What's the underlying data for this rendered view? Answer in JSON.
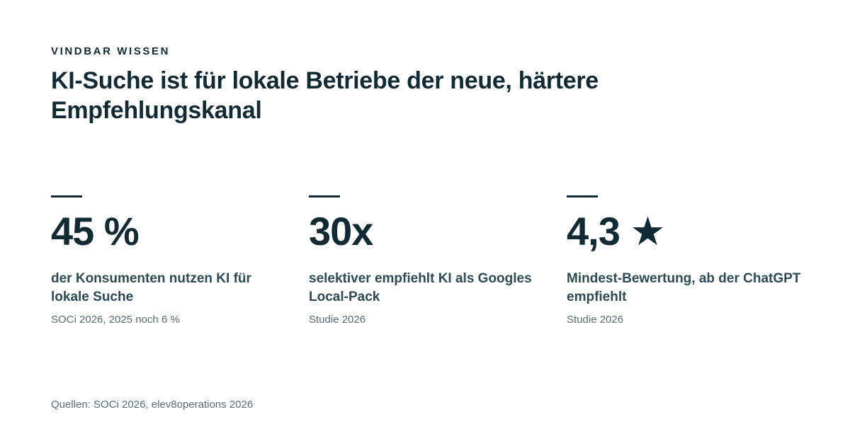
{
  "eyebrow": "VINDBAR WISSEN",
  "headline": "KI-Suche ist für lokale Betriebe der neue, härtere Empfehlungskanal",
  "stats": [
    {
      "value": "45 %",
      "description": "der Konsumenten nutzen KI für lokale Suche",
      "source": "SOCi 2026, 2025 noch 6 %"
    },
    {
      "value": "30x",
      "description": "selektiver empfiehlt KI als Googles Local-Pack",
      "source": "Studie 2026"
    },
    {
      "value": "4,3 ★",
      "description": "Mindest-Bewertung, ab der ChatGPT empfiehlt",
      "source": "Studie 2026"
    }
  ],
  "footer": "Quellen: SOCi 2026, elev8operations 2026",
  "colors": {
    "text_primary": "#122a33",
    "text_secondary": "#2e4a55",
    "text_muted": "#5a6b72",
    "background": "#ffffff"
  }
}
